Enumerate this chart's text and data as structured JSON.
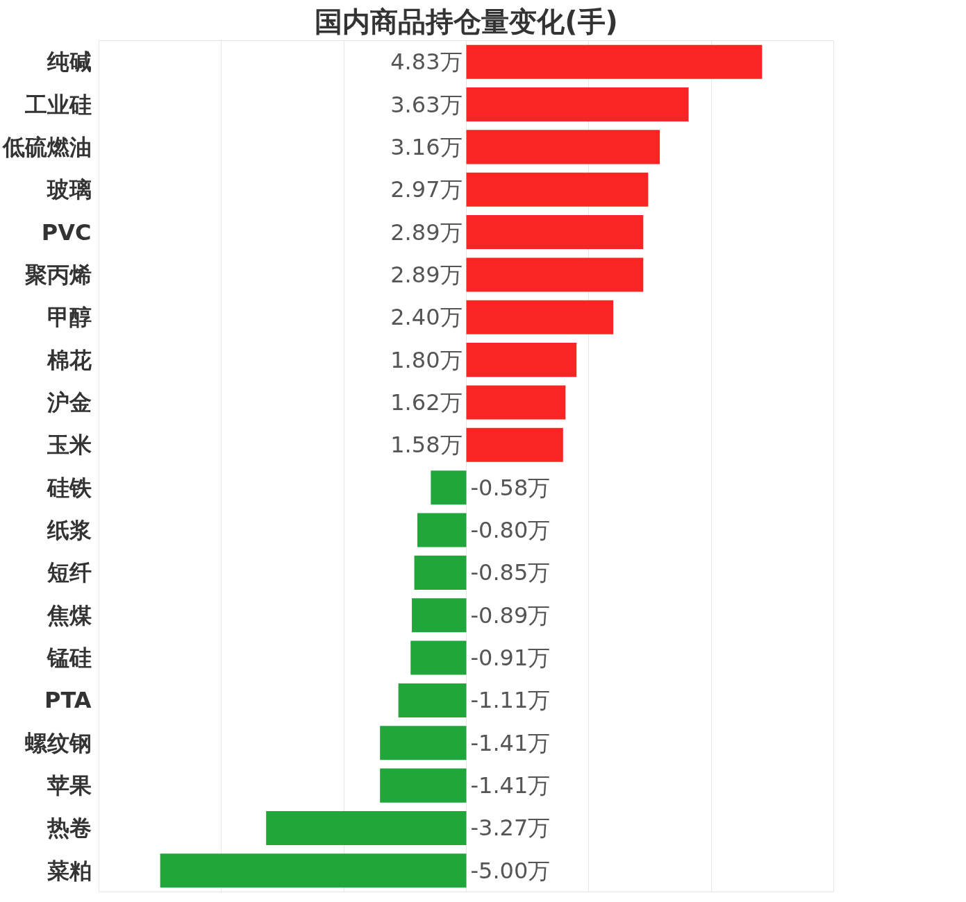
{
  "chart_data": {
    "type": "bar",
    "orientation": "horizontal",
    "title": "国内商品持仓量变化(手)",
    "categories": [
      "纯碱",
      "工业硅",
      "低硫燃油",
      "玻璃",
      "PVC",
      "聚丙烯",
      "甲醇",
      "棉花",
      "沪金",
      "玉米",
      "硅铁",
      "纸浆",
      "短纤",
      "焦煤",
      "锰硅",
      "PTA",
      "螺纹钢",
      "苹果",
      "热卷",
      "菜粕"
    ],
    "values": [
      4.83,
      3.63,
      3.16,
      2.97,
      2.89,
      2.89,
      2.4,
      1.8,
      1.62,
      1.58,
      -0.58,
      -0.8,
      -0.85,
      -0.89,
      -0.91,
      -1.11,
      -1.41,
      -1.41,
      -3.27,
      -5.0
    ],
    "value_labels": [
      "4.83万",
      "3.63万",
      "3.16万",
      "2.97万",
      "2.89万",
      "2.89万",
      "2.40万",
      "1.80万",
      "1.62万",
      "1.58万",
      "-0.58万",
      "-0.80万",
      "-0.85万",
      "-0.89万",
      "-0.91万",
      "-1.11万",
      "-1.41万",
      "-1.41万",
      "-3.27万",
      "-5.00万"
    ],
    "colors": [
      "#f92525",
      "#f92525",
      "#f92525",
      "#f92525",
      "#f92525",
      "#f92525",
      "#f92525",
      "#f92525",
      "#f92525",
      "#f92525",
      "#21a63c",
      "#21a63c",
      "#21a63c",
      "#21a63c",
      "#21a63c",
      "#21a63c",
      "#21a63c",
      "#21a63c",
      "#21a63c",
      "#21a63c"
    ],
    "xlim": [
      -6,
      6
    ],
    "xticks": [
      {
        "value": -6,
        "label": null
      },
      {
        "value": -4,
        "label": null
      },
      {
        "value": -2,
        "label": null
      },
      {
        "value": 0,
        "label": null
      },
      {
        "value": 2,
        "label": null
      },
      {
        "value": 4,
        "label": null
      },
      {
        "value": 6,
        "label": null
      }
    ],
    "grid": "x",
    "tick_labels": "y"
  }
}
